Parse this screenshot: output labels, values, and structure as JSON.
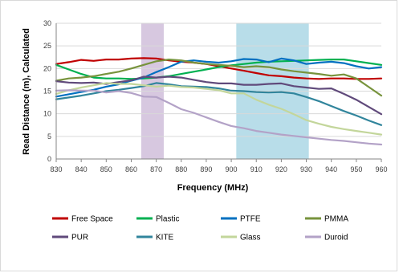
{
  "chart_data": {
    "type": "line",
    "title": "",
    "xlabel": "Frequency (MHz)",
    "ylabel": "Read Distance (m), Calculated",
    "xlim": [
      830,
      960
    ],
    "ylim": [
      0,
      30
    ],
    "x_ticks": [
      830,
      840,
      850,
      860,
      870,
      880,
      890,
      900,
      910,
      920,
      930,
      940,
      950,
      960
    ],
    "y_ticks": [
      0,
      5,
      10,
      15,
      20,
      25,
      30
    ],
    "grid": "horizontal",
    "legend_position": "bottom",
    "shaded_bands": [
      {
        "from": 864,
        "to": 873,
        "color": "#d7c8e0"
      },
      {
        "from": 902,
        "to": 931,
        "color": "#b8dde9"
      }
    ],
    "x": [
      830,
      835,
      840,
      845,
      850,
      855,
      860,
      865,
      870,
      875,
      880,
      885,
      890,
      895,
      900,
      905,
      910,
      915,
      920,
      925,
      930,
      935,
      940,
      945,
      950,
      955,
      960
    ],
    "series": [
      {
        "name": "Free Space",
        "color": "#c00000",
        "values": [
          21.0,
          21.4,
          21.9,
          21.7,
          22.0,
          22.0,
          22.2,
          22.3,
          22.2,
          21.8,
          21.5,
          21.3,
          21.0,
          20.5,
          20.0,
          19.5,
          19.0,
          18.5,
          18.3,
          18.0,
          17.8,
          17.7,
          17.8,
          17.8,
          17.7,
          17.7,
          17.8
        ]
      },
      {
        "name": "Plastic",
        "color": "#00b050",
        "values": [
          20.8,
          19.8,
          18.8,
          18.0,
          17.8,
          17.8,
          17.7,
          17.8,
          18.0,
          18.3,
          18.8,
          19.3,
          19.8,
          20.3,
          20.7,
          21.0,
          21.3,
          21.5,
          21.6,
          21.7,
          21.8,
          21.9,
          22.0,
          22.0,
          21.6,
          21.2,
          20.8
        ]
      },
      {
        "name": "PTFE",
        "color": "#0070c0",
        "values": [
          13.8,
          14.3,
          14.8,
          15.3,
          16.0,
          16.5,
          17.3,
          18.0,
          19.2,
          20.3,
          21.5,
          21.8,
          21.5,
          21.3,
          21.6,
          22.1,
          22.0,
          21.4,
          22.2,
          21.8,
          21.0,
          21.3,
          21.5,
          21.2,
          20.5,
          20.0,
          20.3
        ]
      },
      {
        "name": "PMMA",
        "color": "#77933c",
        "values": [
          17.3,
          17.8,
          18.0,
          18.3,
          18.8,
          19.3,
          20.0,
          20.8,
          21.6,
          22.0,
          21.8,
          21.3,
          21.0,
          20.8,
          20.6,
          20.3,
          20.5,
          20.3,
          19.8,
          19.4,
          19.1,
          18.8,
          18.4,
          18.7,
          17.8,
          15.9,
          14.0
        ]
      },
      {
        "name": "PUR",
        "color": "#604a7b",
        "values": [
          17.2,
          16.9,
          16.8,
          16.9,
          16.6,
          17.0,
          17.4,
          18.2,
          18.0,
          18.2,
          18.0,
          17.5,
          17.0,
          16.7,
          16.7,
          16.4,
          16.4,
          16.6,
          16.7,
          16.1,
          15.8,
          15.5,
          15.6,
          14.4,
          13.1,
          11.5,
          9.9
        ]
      },
      {
        "name": "KITE",
        "color": "#31859c",
        "values": [
          13.2,
          13.6,
          14.0,
          14.5,
          15.0,
          15.3,
          15.7,
          16.1,
          16.8,
          16.5,
          16.1,
          16.0,
          15.9,
          15.6,
          15.1,
          15.0,
          14.8,
          14.7,
          14.8,
          14.5,
          13.7,
          12.8,
          11.7,
          10.6,
          9.6,
          8.5,
          7.5
        ]
      },
      {
        "name": "Glass",
        "color": "#c3d69b",
        "values": [
          14.4,
          15.2,
          15.8,
          16.3,
          16.8,
          16.6,
          16.6,
          16.3,
          16.0,
          16.2,
          15.9,
          15.8,
          15.5,
          15.2,
          14.5,
          14.5,
          13.1,
          12.0,
          11.1,
          9.9,
          8.6,
          7.8,
          7.1,
          6.6,
          6.2,
          5.8,
          5.4
        ]
      },
      {
        "name": "Duroid",
        "color": "#b3a2c7",
        "values": [
          15.1,
          15.2,
          15.1,
          15.1,
          14.7,
          15.0,
          14.6,
          13.8,
          13.7,
          12.4,
          11.0,
          10.2,
          9.2,
          8.2,
          7.3,
          6.8,
          6.2,
          5.8,
          5.4,
          5.1,
          4.8,
          4.5,
          4.2,
          4.0,
          3.7,
          3.4,
          3.2
        ]
      }
    ]
  }
}
